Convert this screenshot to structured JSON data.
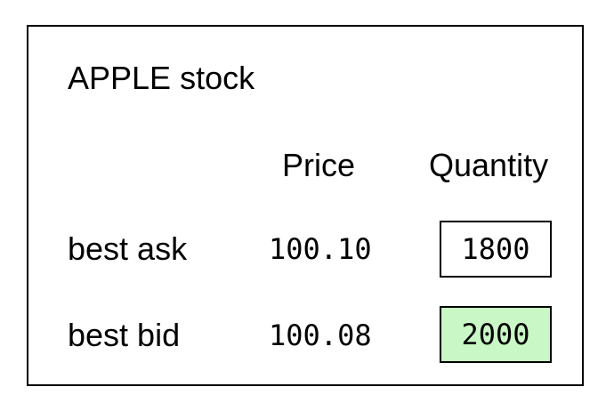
{
  "stock": {
    "title": "APPLE stock"
  },
  "columns": {
    "price": "Price",
    "quantity": "Quantity"
  },
  "rows": [
    {
      "label": "best ask",
      "price": "100.10",
      "quantity": "1800",
      "highlight": "#ffffff"
    },
    {
      "label": "best bid",
      "price": "100.08",
      "quantity": "2000",
      "highlight": "#c9f7c5"
    }
  ],
  "colors": {
    "border": "#000000",
    "bid_highlight": "#c9f7c5"
  }
}
